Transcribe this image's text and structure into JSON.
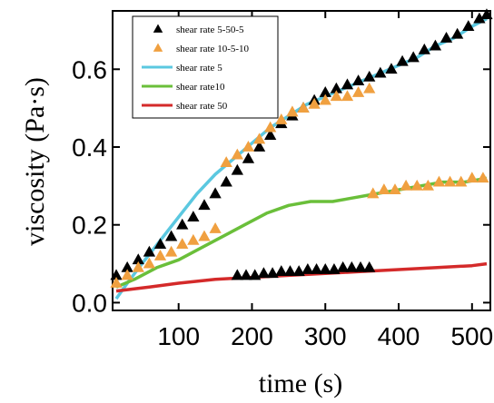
{
  "chart_data": {
    "type": "scatter",
    "xlabel": "time (s)",
    "ylabel": "viscosity (Pa·s)",
    "xlim": [
      10,
      525
    ],
    "ylim": [
      -0.02,
      0.75
    ],
    "x_ticks": [
      "100",
      "200",
      "300",
      "400",
      "500"
    ],
    "y_ticks": [
      "0.0",
      "0.2",
      "0.4",
      "0.6"
    ],
    "legend_position": "top-left",
    "grid": false,
    "series": [
      {
        "name": "shear rate 5-50-5",
        "marker": "triangle",
        "color": "#000000",
        "x": [
          15,
          30,
          45,
          60,
          75,
          90,
          105,
          120,
          135,
          150,
          165,
          180,
          195,
          210,
          225,
          240,
          255,
          270,
          285,
          300,
          315,
          330,
          345,
          360,
          375,
          390,
          405,
          420,
          435,
          450,
          465,
          480,
          495,
          510,
          520,
          180,
          192,
          204,
          216,
          228,
          240,
          252,
          264,
          276,
          288,
          300,
          312,
          324,
          336,
          348,
          360
        ],
        "y": [
          0.07,
          0.09,
          0.11,
          0.13,
          0.15,
          0.17,
          0.2,
          0.22,
          0.25,
          0.28,
          0.31,
          0.34,
          0.37,
          0.4,
          0.43,
          0.46,
          0.48,
          0.5,
          0.52,
          0.54,
          0.55,
          0.56,
          0.57,
          0.58,
          0.59,
          0.6,
          0.62,
          0.63,
          0.65,
          0.66,
          0.68,
          0.69,
          0.71,
          0.73,
          0.74,
          0.07,
          0.07,
          0.07,
          0.075,
          0.075,
          0.08,
          0.08,
          0.08,
          0.085,
          0.085,
          0.085,
          0.085,
          0.09,
          0.09,
          0.09,
          0.09
        ]
      },
      {
        "name": "shear rate 10-5-10",
        "marker": "triangle",
        "color": "#f0a040",
        "x": [
          15,
          30,
          45,
          60,
          75,
          90,
          105,
          120,
          135,
          150,
          165,
          180,
          195,
          210,
          225,
          240,
          255,
          270,
          285,
          300,
          315,
          330,
          345,
          360,
          365,
          380,
          395,
          410,
          425,
          440,
          455,
          470,
          485,
          500,
          515
        ],
        "y": [
          0.05,
          0.07,
          0.09,
          0.1,
          0.12,
          0.13,
          0.15,
          0.16,
          0.17,
          0.19,
          0.36,
          0.38,
          0.4,
          0.42,
          0.45,
          0.47,
          0.49,
          0.5,
          0.51,
          0.52,
          0.53,
          0.53,
          0.54,
          0.55,
          0.28,
          0.29,
          0.29,
          0.3,
          0.3,
          0.3,
          0.31,
          0.31,
          0.31,
          0.32,
          0.32
        ]
      },
      {
        "name": "shear rate 5",
        "line": true,
        "color": "#5bc8e0",
        "x": [
          15,
          30,
          50,
          75,
          100,
          125,
          150,
          175,
          200,
          225,
          250,
          275,
          300,
          325,
          350,
          375,
          400,
          425,
          450,
          475,
          500,
          520
        ],
        "y": [
          0.01,
          0.05,
          0.1,
          0.16,
          0.22,
          0.28,
          0.33,
          0.37,
          0.41,
          0.45,
          0.48,
          0.51,
          0.53,
          0.55,
          0.57,
          0.59,
          0.61,
          0.63,
          0.66,
          0.68,
          0.71,
          0.73
        ]
      },
      {
        "name": "shear rate10",
        "line": true,
        "color": "#6abf3a",
        "x": [
          15,
          40,
          70,
          100,
          130,
          160,
          190,
          220,
          250,
          280,
          310,
          340,
          370,
          400,
          430,
          460,
          490,
          520
        ],
        "y": [
          0.04,
          0.06,
          0.09,
          0.11,
          0.14,
          0.17,
          0.2,
          0.23,
          0.25,
          0.26,
          0.26,
          0.27,
          0.28,
          0.29,
          0.3,
          0.31,
          0.31,
          0.32
        ]
      },
      {
        "name": "shear rate 50",
        "line": true,
        "color": "#d42a2a",
        "x": [
          15,
          60,
          100,
          150,
          200,
          250,
          300,
          350,
          400,
          450,
          500,
          520
        ],
        "y": [
          0.03,
          0.04,
          0.05,
          0.06,
          0.065,
          0.07,
          0.075,
          0.08,
          0.085,
          0.09,
          0.095,
          0.1
        ]
      }
    ]
  }
}
